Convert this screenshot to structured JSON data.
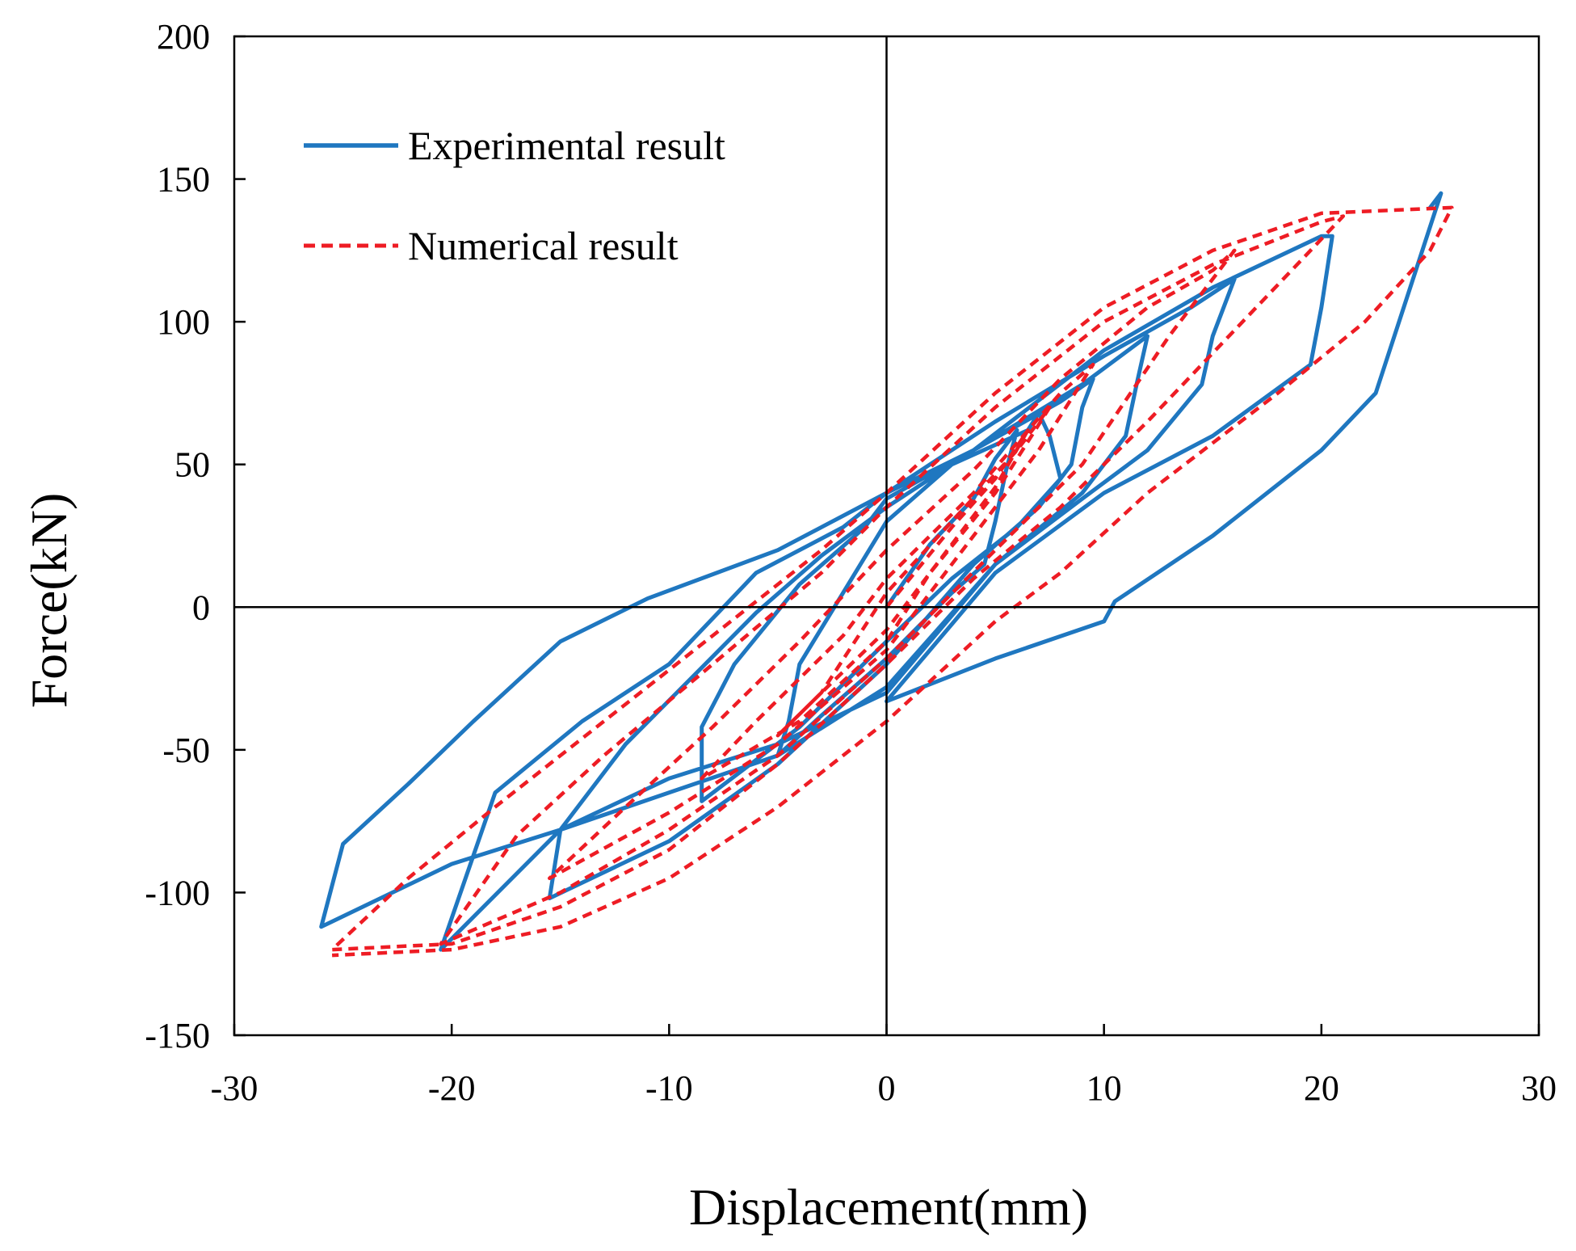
{
  "chart_data": {
    "type": "line",
    "title": "",
    "xlabel": "Displacement(mm)",
    "ylabel": "Force(kN)",
    "xlim": [
      -30,
      30
    ],
    "ylim": [
      -150,
      200
    ],
    "xticks": [
      -30,
      -20,
      -10,
      0,
      10,
      20,
      30
    ],
    "yticks": [
      -150,
      -100,
      -50,
      0,
      50,
      100,
      150,
      200
    ],
    "xtick_labels": [
      "-30",
      "-20",
      "-10",
      "0",
      "10",
      "20",
      "30"
    ],
    "ytick_labels": [
      "-150",
      "-100",
      "-50",
      "0",
      "50",
      "100",
      "150",
      "200"
    ],
    "grid": false,
    "zero_lines": true,
    "legend_position": "top-left",
    "series": [
      {
        "name": "Experimental result",
        "style": "solid",
        "color": "#1f77c0",
        "points": [
          [
            0,
            0
          ],
          [
            2,
            22
          ],
          [
            4,
            38
          ],
          [
            5,
            52
          ],
          [
            6,
            62
          ],
          [
            5.5,
            48
          ],
          [
            5,
            30
          ],
          [
            4.5,
            15
          ],
          [
            3,
            5
          ],
          [
            0,
            -18
          ],
          [
            -3,
            -38
          ],
          [
            -5,
            -52
          ],
          [
            -4.5,
            -40
          ],
          [
            -4,
            -20
          ],
          [
            -2,
            5
          ],
          [
            0,
            30
          ],
          [
            3,
            50
          ],
          [
            6.5,
            62
          ],
          [
            7,
            68
          ],
          [
            7.5,
            60
          ],
          [
            8,
            45
          ],
          [
            6,
            28
          ],
          [
            3,
            10
          ],
          [
            0,
            -12
          ],
          [
            -4,
            -42
          ],
          [
            -8.5,
            -68
          ],
          [
            -8.5,
            -42
          ],
          [
            -7,
            -20
          ],
          [
            -4,
            8
          ],
          [
            -1,
            28
          ],
          [
            0,
            38
          ],
          [
            4,
            55
          ],
          [
            8,
            72
          ],
          [
            9.5,
            80
          ],
          [
            9,
            70
          ],
          [
            8.5,
            50
          ],
          [
            7,
            35
          ],
          [
            4,
            15
          ],
          [
            0,
            -20
          ],
          [
            -5,
            -55
          ],
          [
            -10,
            -82
          ],
          [
            -15.5,
            -102
          ],
          [
            -15,
            -78
          ],
          [
            -12,
            -48
          ],
          [
            -9,
            -25
          ],
          [
            -6,
            -2
          ],
          [
            -3,
            18
          ],
          [
            0,
            35
          ],
          [
            4,
            55
          ],
          [
            9,
            78
          ],
          [
            12,
            95
          ],
          [
            11.5,
            78
          ],
          [
            11,
            60
          ],
          [
            9,
            40
          ],
          [
            5,
            15
          ],
          [
            0,
            -28
          ],
          [
            -5,
            -52
          ],
          [
            -10,
            -65
          ],
          [
            -15,
            -78
          ],
          [
            -20.5,
            -120
          ],
          [
            -18,
            -65
          ],
          [
            -14,
            -40
          ],
          [
            -10,
            -20
          ],
          [
            -6,
            12
          ],
          [
            -2,
            28
          ],
          [
            0,
            40
          ],
          [
            5,
            65
          ],
          [
            10,
            88
          ],
          [
            14,
            105
          ],
          [
            16,
            115
          ],
          [
            15,
            95
          ],
          [
            14.5,
            78
          ],
          [
            12,
            55
          ],
          [
            9,
            38
          ],
          [
            5,
            15
          ],
          [
            0,
            -30
          ],
          [
            -5,
            -48
          ],
          [
            -10,
            -60
          ],
          [
            -15,
            -78
          ],
          [
            -20,
            -90
          ],
          [
            -26,
            -112
          ],
          [
            -25,
            -83
          ],
          [
            -22,
            -62
          ],
          [
            -19,
            -40
          ],
          [
            -15,
            -12
          ],
          [
            -11,
            3
          ],
          [
            -5,
            20
          ],
          [
            0,
            40
          ],
          [
            4,
            55
          ],
          [
            10,
            90
          ],
          [
            15,
            112
          ],
          [
            20,
            130
          ],
          [
            20.5,
            130
          ],
          [
            20,
            105
          ],
          [
            19.5,
            85
          ],
          [
            15,
            60
          ],
          [
            10,
            40
          ],
          [
            5,
            12
          ],
          [
            0,
            -33
          ],
          [
            5,
            -18
          ],
          [
            10,
            -5
          ],
          [
            10.5,
            2
          ],
          [
            15,
            25
          ],
          [
            20,
            55
          ],
          [
            22.5,
            75
          ],
          [
            25.5,
            145
          ],
          [
            25,
            140
          ]
        ]
      },
      {
        "name": "Numerical result",
        "style": "dashed",
        "color": "#ee1c24",
        "points": [
          [
            0,
            0
          ],
          [
            3,
            28
          ],
          [
            5,
            45
          ],
          [
            6.5,
            62
          ],
          [
            5,
            42
          ],
          [
            2,
            12
          ],
          [
            0,
            -8
          ],
          [
            -3,
            -30
          ],
          [
            -5,
            -45
          ],
          [
            -3,
            -30
          ],
          [
            0,
            5
          ],
          [
            3,
            30
          ],
          [
            6,
            55
          ],
          [
            7.5,
            70
          ],
          [
            5,
            40
          ],
          [
            2,
            12
          ],
          [
            0,
            -12
          ],
          [
            -4,
            -40
          ],
          [
            -8.5,
            -60
          ],
          [
            -6,
            -40
          ],
          [
            -2,
            -10
          ],
          [
            0,
            10
          ],
          [
            4,
            40
          ],
          [
            8,
            75
          ],
          [
            9.5,
            85
          ],
          [
            7,
            55
          ],
          [
            4,
            25
          ],
          [
            0,
            -15
          ],
          [
            -5,
            -48
          ],
          [
            -10,
            -72
          ],
          [
            -15.5,
            -95
          ],
          [
            -12,
            -70
          ],
          [
            -8,
            -42
          ],
          [
            -4,
            -12
          ],
          [
            0,
            20
          ],
          [
            4,
            48
          ],
          [
            8,
            80
          ],
          [
            12,
            105
          ],
          [
            15,
            118
          ],
          [
            16,
            125
          ],
          [
            13,
            95
          ],
          [
            9,
            50
          ],
          [
            5,
            20
          ],
          [
            0,
            -18
          ],
          [
            -5,
            -52
          ],
          [
            -10,
            -78
          ],
          [
            -15,
            -100
          ],
          [
            -20.5,
            -118
          ],
          [
            -17,
            -80
          ],
          [
            -13,
            -52
          ],
          [
            -8,
            -20
          ],
          [
            -3,
            12
          ],
          [
            0,
            35
          ],
          [
            5,
            70
          ],
          [
            10,
            100
          ],
          [
            15,
            120
          ],
          [
            20,
            135
          ],
          [
            21,
            137
          ],
          [
            17,
            105
          ],
          [
            12,
            65
          ],
          [
            8,
            35
          ],
          [
            4,
            10
          ],
          [
            0,
            -20
          ],
          [
            -5,
            -55
          ],
          [
            -10,
            -85
          ],
          [
            -15,
            -105
          ],
          [
            -20,
            -118
          ],
          [
            -25.5,
            -120
          ],
          [
            -22,
            -95
          ],
          [
            -18,
            -70
          ],
          [
            -13,
            -40
          ],
          [
            -8,
            -10
          ],
          [
            -3,
            20
          ],
          [
            0,
            40
          ],
          [
            5,
            75
          ],
          [
            10,
            105
          ],
          [
            15,
            125
          ],
          [
            20,
            138
          ],
          [
            26,
            140
          ],
          [
            25,
            125
          ],
          [
            22,
            100
          ],
          [
            18,
            75
          ],
          [
            12,
            40
          ],
          [
            8,
            12
          ],
          [
            5,
            -5
          ],
          [
            0,
            -40
          ],
          [
            -5,
            -70
          ],
          [
            -10,
            -95
          ],
          [
            -15,
            -112
          ],
          [
            -20,
            -120
          ],
          [
            -25.5,
            -122
          ]
        ]
      }
    ]
  }
}
